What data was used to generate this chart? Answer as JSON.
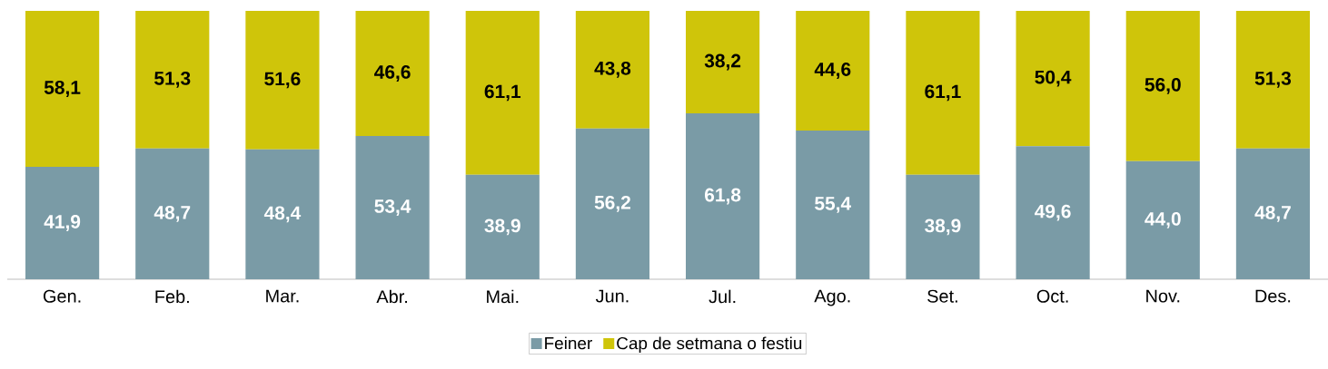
{
  "chart_data": {
    "type": "bar",
    "stacked": true,
    "legend": "bottom",
    "categories": [
      "Gen.",
      "Feb.",
      "Mar.",
      "Abr.",
      "Mai.",
      "Jun.",
      "Jul.",
      "Ago.",
      "Set.",
      "Oct.",
      "Nov.",
      "Des."
    ],
    "series": [
      {
        "name": "Feiner",
        "color": "#7a9ba6",
        "values": [
          41.9,
          48.7,
          48.4,
          53.4,
          38.9,
          56.2,
          61.8,
          55.4,
          38.9,
          49.6,
          44.0,
          48.7
        ],
        "value_labels": [
          "41,9",
          "48,7",
          "48,4",
          "53,4",
          "38,9",
          "56,2",
          "61,8",
          "55,4",
          "38,9",
          "49,6",
          "44,0",
          "48,7"
        ]
      },
      {
        "name": "Cap de setmana o festiu",
        "color": "#cfc50a",
        "values": [
          58.1,
          51.3,
          51.6,
          46.6,
          61.1,
          43.8,
          38.2,
          44.6,
          61.1,
          50.4,
          56.0,
          51.3
        ],
        "value_labels": [
          "58,1",
          "51,3",
          "51,6",
          "46,6",
          "61,1",
          "43,8",
          "38,2",
          "44,6",
          "61,1",
          "50,4",
          "56,0",
          "51,3"
        ]
      }
    ]
  }
}
